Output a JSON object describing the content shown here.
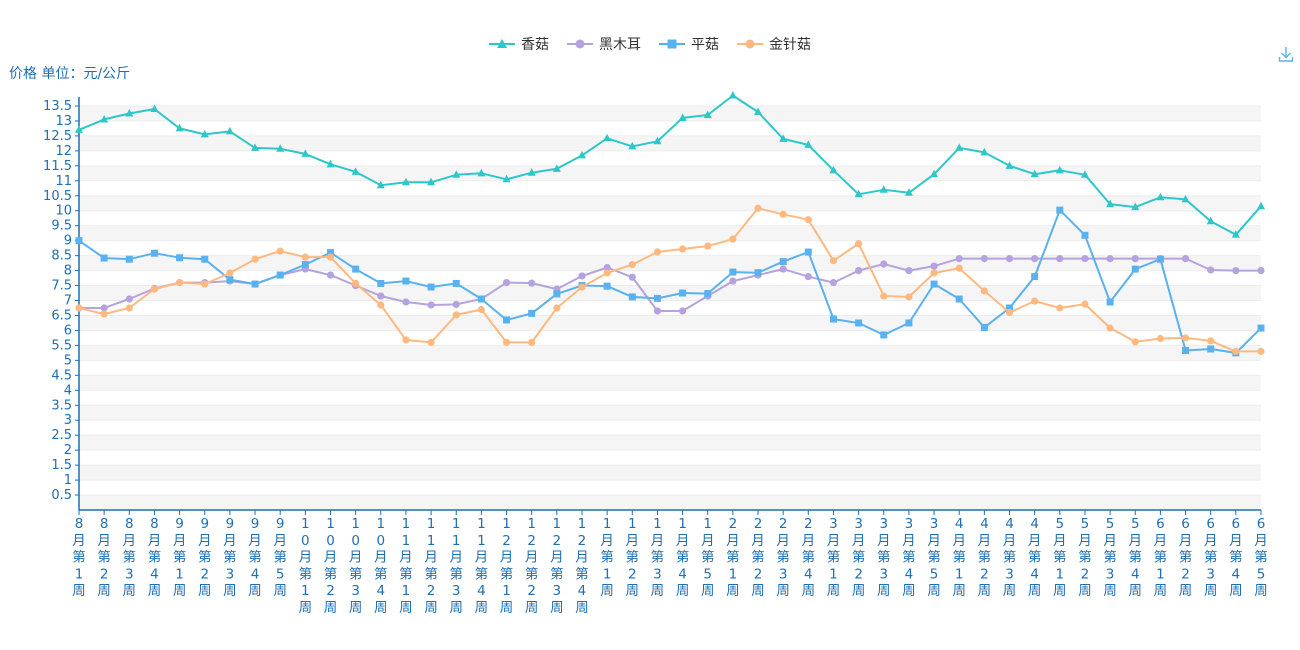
{
  "chart_data": {
    "type": "line",
    "ylabel": "价格 单位：元/公斤",
    "ylim": [
      0,
      13.8
    ],
    "yticks": [
      0.5,
      1,
      1.5,
      2,
      2.5,
      3,
      3.5,
      4,
      4.5,
      5,
      5.5,
      6,
      6.5,
      7,
      7.5,
      8,
      8.5,
      9,
      9.5,
      10,
      10.5,
      11,
      11.5,
      12,
      12.5,
      13,
      13.5
    ],
    "categories": [
      "8月第1周",
      "8月第2周",
      "8月第3周",
      "8月第4周",
      "9月第1周",
      "9月第2周",
      "9月第3周",
      "9月第4周",
      "9月第5周",
      "10月第1周",
      "10月第2周",
      "10月第3周",
      "10月第4周",
      "11月第1周",
      "11月第2周",
      "11月第3周",
      "11月第4周",
      "12月第1周",
      "12月第2周",
      "12月第3周",
      "12月第4周",
      "1月第1周",
      "1月第2周",
      "1月第3周",
      "1月第4周",
      "1月第5周",
      "2月第1周",
      "2月第2周",
      "2月第3周",
      "2月第4周",
      "3月第1周",
      "3月第2周",
      "3月第3周",
      "3月第4周",
      "3月第5周",
      "4月第1周",
      "4月第2周",
      "4月第3周",
      "4月第4周",
      "5月第1周",
      "5月第2周",
      "5月第3周",
      "5月第4周",
      "6月第1周",
      "6月第2周",
      "6月第3周",
      "6月第4周",
      "6月第5周"
    ],
    "grid": true,
    "legend_position": "top-center",
    "series": [
      {
        "name": "香菇",
        "color": "#2ec7c9",
        "marker": "triangle",
        "values": [
          12.7,
          13.05,
          13.25,
          13.4,
          12.75,
          12.55,
          12.65,
          12.1,
          12.07,
          11.9,
          11.55,
          11.3,
          10.85,
          10.95,
          10.95,
          11.2,
          11.25,
          11.05,
          11.27,
          11.4,
          11.85,
          12.42,
          12.15,
          12.32,
          13.1,
          13.2,
          13.85,
          13.3,
          12.4,
          12.2,
          11.35,
          10.55,
          10.7,
          10.6,
          11.22,
          12.1,
          11.95,
          11.5,
          11.22,
          11.35,
          11.2,
          10.22,
          10.12,
          10.45,
          10.38,
          9.65,
          9.2,
          10.15
        ]
      },
      {
        "name": "黑木耳",
        "color": "#b6a2de",
        "marker": "circle",
        "values": [
          6.75,
          6.75,
          7.05,
          7.4,
          7.6,
          7.6,
          7.65,
          7.55,
          7.85,
          8.05,
          7.85,
          7.5,
          7.15,
          6.95,
          6.85,
          6.87,
          7.05,
          7.6,
          7.58,
          7.38,
          7.82,
          8.1,
          7.78,
          6.65,
          6.65,
          7.15,
          7.65,
          7.85,
          8.05,
          7.8,
          7.6,
          8.0,
          8.22,
          8.0,
          8.15,
          8.4,
          8.4,
          8.4,
          8.4,
          8.4,
          8.4,
          8.4,
          8.4,
          8.4,
          8.4,
          8.02,
          8.0,
          8.0
        ]
      },
      {
        "name": "平菇",
        "color": "#5ab1ef",
        "marker": "square",
        "values": [
          9.0,
          8.42,
          8.38,
          8.58,
          8.43,
          8.38,
          7.7,
          7.55,
          7.85,
          8.2,
          8.6,
          8.05,
          7.57,
          7.65,
          7.45,
          7.57,
          7.05,
          6.35,
          6.57,
          7.22,
          7.5,
          7.48,
          7.12,
          7.07,
          7.25,
          7.23,
          7.95,
          7.93,
          8.3,
          8.62,
          6.38,
          6.25,
          5.85,
          6.25,
          7.55,
          7.05,
          6.1,
          6.75,
          7.8,
          10.02,
          9.18,
          6.95,
          8.05,
          8.38,
          5.33,
          5.38,
          5.25,
          6.08
        ]
      },
      {
        "name": "金针菇",
        "color": "#ffb980",
        "marker": "circle",
        "values": [
          6.75,
          6.55,
          6.75,
          7.38,
          7.6,
          7.55,
          7.92,
          8.38,
          8.65,
          8.45,
          8.45,
          7.57,
          6.85,
          5.68,
          5.6,
          6.52,
          6.7,
          5.6,
          5.6,
          6.75,
          7.45,
          7.92,
          8.2,
          8.62,
          8.72,
          8.82,
          9.05,
          10.08,
          9.88,
          9.7,
          8.33,
          8.9,
          7.15,
          7.12,
          7.92,
          8.08,
          7.32,
          6.6,
          6.98,
          6.75,
          6.88,
          6.08,
          5.62,
          5.73,
          5.75,
          5.65,
          5.3,
          5.3
        ]
      }
    ]
  },
  "toolbox": {
    "download_icon": "download-icon"
  }
}
